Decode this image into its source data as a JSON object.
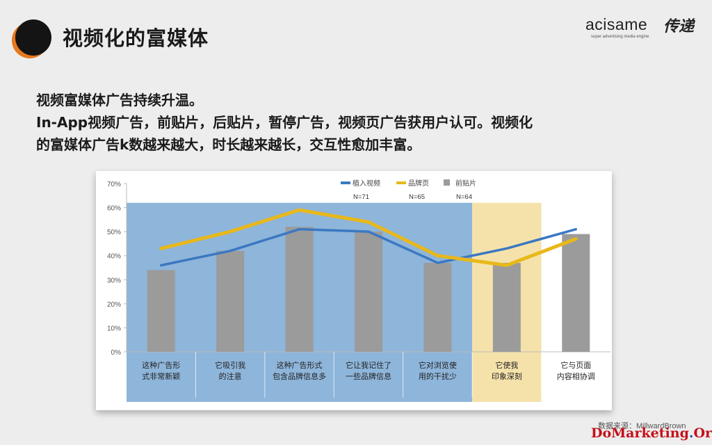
{
  "header": {
    "title": "视频化的富媒体"
  },
  "logo": {
    "text": "acisame",
    "cn_text": "传递",
    "tagline": "super advertising media engine"
  },
  "body": {
    "line1": "视频富媒体广告持续升温。",
    "line2": "In-App视频广告，前贴片，后贴片，暂停广告，视频页广告获用户认可。视频化",
    "line3": "的富媒体广告k数越来越大，时长越来越长，交互性愈加丰富。"
  },
  "footer": {
    "source": "数据来源：MillwardBrown",
    "watermark_main": "DoMarketing",
    "watermark_dot": ".",
    "watermark_tld": "Org"
  },
  "colors": {
    "blue_line": "#3b78c2",
    "gold_line": "#e8b81a",
    "gray_bar": "#9b9b9b",
    "blue_band": "#8eb5da",
    "yellow_band": "#f5e2aa",
    "brand_orange": "#e8791e"
  },
  "chart_data": {
    "type": "bar",
    "title": "",
    "xlabel": "",
    "ylabel": "",
    "ylim": [
      0,
      70
    ],
    "yticks": [
      "0%",
      "10%",
      "20%",
      "30%",
      "40%",
      "50%",
      "60%",
      "70%"
    ],
    "grid": false,
    "legend_position": "top",
    "categories": [
      [
        "这种广告形",
        "式非常新颖"
      ],
      [
        "它吸引我",
        "的注意"
      ],
      [
        "这种广告形式",
        "包含品牌信息多"
      ],
      [
        "它让我记住了",
        "一些品牌信息"
      ],
      [
        "它对浏览使",
        "用的干扰少"
      ],
      [
        "它使我",
        "印象深刻"
      ],
      [
        "它与页面",
        "内容相协调"
      ]
    ],
    "series": [
      {
        "name": "植入视频",
        "kind": "line",
        "color": "#3b78c2",
        "n": "N=71",
        "values": [
          36,
          42,
          51,
          50,
          37,
          43,
          51
        ]
      },
      {
        "name": "品牌页",
        "kind": "line",
        "color": "#e8b81a",
        "n": "N=65",
        "values": [
          43,
          50,
          59,
          54,
          40,
          36,
          47
        ]
      },
      {
        "name": "前贴片",
        "kind": "bar",
        "color": "#9b9b9b",
        "n": "N=64",
        "values": [
          34,
          42,
          52,
          50,
          37,
          37,
          49
        ]
      }
    ]
  }
}
